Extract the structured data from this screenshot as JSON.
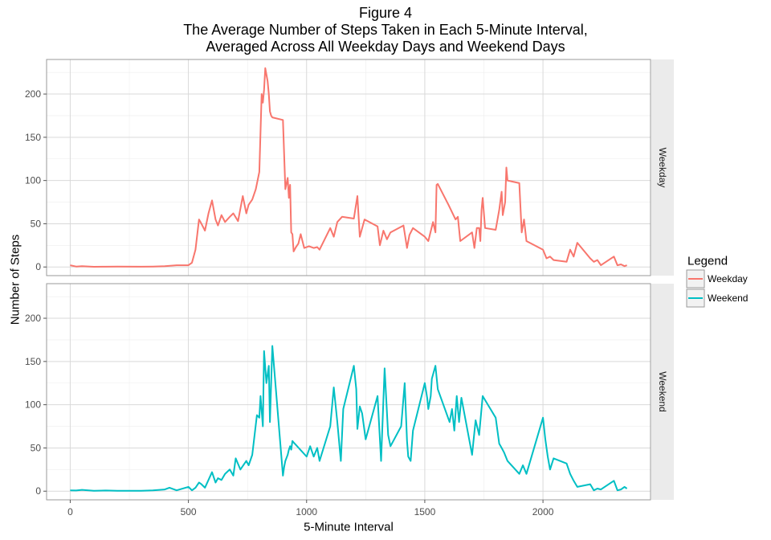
{
  "figure": {
    "title_lines": [
      "Figure 4",
      "The Average Number of Steps Taken in Each 5-Minute Interval,",
      "Averaged Across All Weekday Days and Weekend Days"
    ],
    "xlabel": "5-Minute Interval",
    "ylabel": "Number of Steps",
    "legend_title": "Legend"
  },
  "chart_data": {
    "type": "line",
    "title": "Figure 4 The Average Number of Steps Taken in Each 5-Minute Interval, Averaged Across All Weekday Days and Weekend Days",
    "xlabel": "5-Minute Interval",
    "ylabel": "Number of Steps",
    "xlim": [
      -100,
      2455
    ],
    "ylim": [
      -10,
      240
    ],
    "x_ticks": [
      0,
      500,
      1000,
      1500,
      2000
    ],
    "y_ticks": [
      0,
      50,
      100,
      150,
      200
    ],
    "grid": true,
    "legend_position": "right",
    "legend_title": "Legend",
    "facets": [
      "Weekday",
      "Weekend"
    ],
    "series": [
      {
        "name": "Weekday",
        "facet": "Weekday",
        "color": "#F8766D",
        "x": [
          0,
          25,
          50,
          100,
          150,
          200,
          300,
          350,
          400,
          450,
          500,
          515,
          530,
          545,
          555,
          570,
          585,
          600,
          615,
          625,
          640,
          655,
          675,
          690,
          710,
          730,
          745,
          755,
          770,
          785,
          800,
          810,
          815,
          820,
          825,
          835,
          840,
          845,
          850,
          855,
          900,
          910,
          920,
          925,
          930,
          935,
          940,
          945,
          955,
          965,
          975,
          990,
          1010,
          1030,
          1045,
          1055,
          1100,
          1115,
          1130,
          1150,
          1200,
          1215,
          1225,
          1245,
          1300,
          1310,
          1325,
          1340,
          1355,
          1410,
          1425,
          1435,
          1450,
          1500,
          1515,
          1535,
          1545,
          1550,
          1555,
          1600,
          1630,
          1640,
          1650,
          1700,
          1710,
          1720,
          1730,
          1735,
          1740,
          1745,
          1755,
          1800,
          1815,
          1825,
          1830,
          1840,
          1845,
          1850,
          1900,
          1910,
          1920,
          1930,
          2000,
          2015,
          2030,
          2045,
          2100,
          2115,
          2130,
          2145,
          2200,
          2215,
          2230,
          2245,
          2300,
          2315,
          2330,
          2345,
          2355
        ],
        "values": [
          2,
          0.5,
          1,
          0.2,
          0.3,
          0.4,
          0.3,
          0.5,
          1,
          2,
          2,
          5,
          20,
          55,
          50,
          42,
          62,
          77,
          55,
          48,
          60,
          52,
          58,
          62,
          53,
          82,
          62,
          72,
          78,
          90,
          110,
          200,
          190,
          205,
          230,
          215,
          200,
          180,
          175,
          173,
          170,
          90,
          103,
          80,
          95,
          40,
          38,
          18,
          23,
          27,
          38,
          22,
          24,
          22,
          23,
          20,
          45,
          35,
          52,
          58,
          56,
          82,
          35,
          55,
          47,
          25,
          42,
          32,
          40,
          48,
          22,
          37,
          45,
          35,
          30,
          52,
          40,
          95,
          96,
          72,
          55,
          58,
          30,
          40,
          22,
          45,
          45,
          30,
          66,
          80,
          45,
          43,
          66,
          87,
          60,
          75,
          115,
          100,
          97,
          40,
          55,
          30,
          20,
          10,
          12,
          8,
          6,
          20,
          12,
          28,
          10,
          6,
          8,
          2,
          12,
          2,
          3,
          1,
          2
        ]
      },
      {
        "name": "Weekend",
        "facet": "Weekend",
        "color": "#00BFC4",
        "x": [
          0,
          25,
          50,
          100,
          150,
          200,
          300,
          350,
          400,
          420,
          450,
          500,
          515,
          530,
          545,
          555,
          570,
          600,
          615,
          625,
          640,
          655,
          675,
          690,
          700,
          720,
          745,
          755,
          770,
          790,
          800,
          805,
          815,
          820,
          830,
          840,
          845,
          855,
          900,
          905,
          910,
          920,
          925,
          930,
          935,
          940,
          950,
          1000,
          1015,
          1030,
          1045,
          1055,
          1100,
          1115,
          1130,
          1145,
          1155,
          1200,
          1210,
          1215,
          1225,
          1235,
          1250,
          1300,
          1315,
          1330,
          1345,
          1355,
          1400,
          1415,
          1425,
          1430,
          1440,
          1450,
          1500,
          1510,
          1515,
          1525,
          1530,
          1545,
          1555,
          1605,
          1615,
          1625,
          1635,
          1645,
          1655,
          1700,
          1715,
          1730,
          1745,
          1800,
          1815,
          1825,
          1835,
          1850,
          1900,
          1915,
          1930,
          2000,
          2010,
          2020,
          2030,
          2045,
          2100,
          2115,
          2130,
          2145,
          2200,
          2215,
          2230,
          2245,
          2300,
          2315,
          2330,
          2345,
          2355
        ],
        "values": [
          1,
          0.8,
          1.5,
          0.5,
          0.8,
          0.5,
          0.5,
          1,
          2,
          4,
          1,
          5,
          1,
          4,
          10,
          8,
          4,
          22,
          10,
          15,
          13,
          20,
          25,
          18,
          38,
          25,
          35,
          30,
          42,
          88,
          85,
          110,
          75,
          162,
          125,
          145,
          80,
          168,
          18,
          28,
          35,
          42,
          48,
          52,
          48,
          58,
          55,
          40,
          52,
          40,
          50,
          35,
          75,
          120,
          80,
          35,
          95,
          145,
          118,
          72,
          98,
          90,
          60,
          110,
          35,
          142,
          65,
          52,
          75,
          125,
          58,
          40,
          35,
          70,
          125,
          108,
          95,
          110,
          130,
          145,
          118,
          80,
          95,
          70,
          110,
          80,
          108,
          42,
          82,
          65,
          110,
          85,
          55,
          50,
          45,
          35,
          20,
          30,
          20,
          85,
          60,
          40,
          25,
          38,
          32,
          20,
          12,
          5,
          8,
          1,
          3,
          2,
          12,
          1,
          2,
          5,
          3
        ]
      }
    ]
  }
}
